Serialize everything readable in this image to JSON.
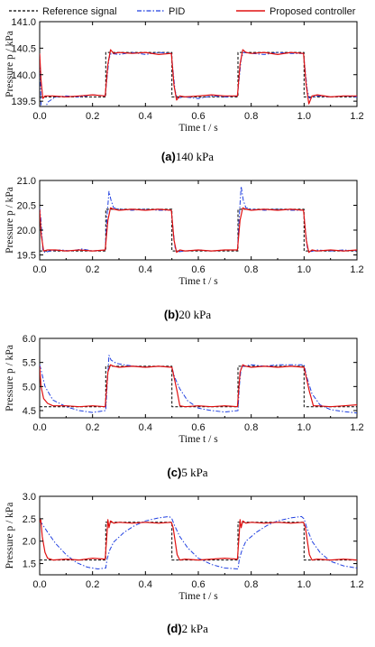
{
  "legend": [
    {
      "label": "Reference signal",
      "color": "#000000",
      "dash": "3,2"
    },
    {
      "label": "PID",
      "color": "#1f3fe0",
      "dash": "5,2,1.5,2"
    },
    {
      "label": "Proposed controller",
      "color": "#e01010",
      "dash": ""
    }
  ],
  "chart_data": [
    {
      "type": "line",
      "caption_letter": "(a)",
      "caption_text": "140 kPa",
      "xlabel": "Time t / s",
      "ylabel": "Pressure p / kPa",
      "xlim": [
        0,
        1.2
      ],
      "ylim": [
        139.4,
        141.0
      ],
      "xticks": [
        "0.0",
        "0.2",
        "0.4",
        "0.6",
        "0.8",
        "1.0",
        "1.2"
      ],
      "yticks": [
        "139.5",
        "140.0",
        "140.5",
        "141.0"
      ],
      "ytick_values": [
        139.5,
        140.0,
        140.5,
        141.0
      ],
      "series": [
        {
          "name": "Reference signal",
          "x": [
            0,
            0.25,
            0.25,
            0.5,
            0.5,
            0.75,
            0.75,
            1.0,
            1.0,
            1.2
          ],
          "y": [
            139.58,
            139.58,
            140.42,
            140.42,
            139.58,
            139.58,
            140.42,
            140.42,
            139.58,
            139.58
          ]
        },
        {
          "name": "PID",
          "x": [
            0,
            0.006,
            0.013,
            0.03,
            0.06,
            0.1,
            0.15,
            0.2,
            0.248,
            0.255,
            0.262,
            0.27,
            0.3,
            0.35,
            0.4,
            0.45,
            0.498,
            0.505,
            0.512,
            0.52,
            0.55,
            0.6,
            0.65,
            0.7,
            0.748,
            0.755,
            0.762,
            0.77,
            0.8,
            0.85,
            0.9,
            0.95,
            0.998,
            1.005,
            1.012,
            1.02,
            1.05,
            1.1,
            1.15,
            1.2
          ],
          "y": [
            140.4,
            139.3,
            139.24,
            139.48,
            139.58,
            139.6,
            139.58,
            139.62,
            139.6,
            139.95,
            140.3,
            140.4,
            140.38,
            140.42,
            140.38,
            140.42,
            140.4,
            140.05,
            139.7,
            139.56,
            139.58,
            139.55,
            139.6,
            139.58,
            139.6,
            139.95,
            140.3,
            140.42,
            140.4,
            140.38,
            140.42,
            140.4,
            140.4,
            140.05,
            139.7,
            139.56,
            139.6,
            139.58,
            139.6,
            139.58
          ]
        },
        {
          "name": "Proposed controller",
          "x": [
            0,
            0.005,
            0.012,
            0.02,
            0.05,
            0.1,
            0.15,
            0.2,
            0.248,
            0.258,
            0.268,
            0.28,
            0.3,
            0.35,
            0.4,
            0.45,
            0.498,
            0.508,
            0.518,
            0.53,
            0.55,
            0.6,
            0.65,
            0.7,
            0.748,
            0.758,
            0.768,
            0.78,
            0.8,
            0.85,
            0.9,
            0.95,
            0.998,
            1.008,
            1.018,
            1.03,
            1.05,
            1.1,
            1.15,
            1.2
          ],
          "y": [
            140.4,
            139.9,
            139.55,
            139.6,
            139.6,
            139.58,
            139.6,
            139.62,
            139.6,
            140.2,
            140.47,
            140.4,
            140.42,
            140.4,
            140.42,
            140.38,
            140.4,
            139.8,
            139.52,
            139.6,
            139.58,
            139.6,
            139.62,
            139.6,
            139.6,
            140.2,
            140.47,
            140.42,
            140.4,
            140.42,
            140.38,
            140.42,
            140.4,
            139.8,
            139.45,
            139.6,
            139.62,
            139.58,
            139.6,
            139.6
          ]
        }
      ]
    },
    {
      "type": "line",
      "caption_letter": "(b)",
      "caption_text": "20 kPa",
      "xlabel": "Time t / s",
      "ylabel": "Pressure p / kPa",
      "xlim": [
        0,
        1.2
      ],
      "ylim": [
        19.4,
        21.0
      ],
      "xticks": [
        "0.0",
        "0.2",
        "0.4",
        "0.6",
        "0.8",
        "1.0",
        "1.2"
      ],
      "yticks": [
        "19.5",
        "20.0",
        "20.5",
        "21.0"
      ],
      "ytick_values": [
        19.5,
        20.0,
        20.5,
        21.0
      ],
      "series": [
        {
          "name": "Reference signal",
          "x": [
            0,
            0.25,
            0.25,
            0.5,
            0.5,
            0.75,
            0.75,
            1.0,
            1.0,
            1.2
          ],
          "y": [
            19.58,
            19.58,
            20.42,
            20.42,
            19.58,
            19.58,
            20.42,
            20.42,
            19.58,
            19.58
          ]
        },
        {
          "name": "PID",
          "x": [
            0,
            0.005,
            0.012,
            0.02,
            0.04,
            0.08,
            0.12,
            0.16,
            0.2,
            0.248,
            0.255,
            0.262,
            0.27,
            0.28,
            0.3,
            0.35,
            0.4,
            0.45,
            0.498,
            0.505,
            0.512,
            0.52,
            0.55,
            0.6,
            0.65,
            0.7,
            0.748,
            0.755,
            0.762,
            0.77,
            0.78,
            0.8,
            0.85,
            0.9,
            0.95,
            0.998,
            1.005,
            1.012,
            1.02,
            1.05,
            1.1,
            1.15,
            1.2
          ],
          "y": [
            20.45,
            20.2,
            19.6,
            19.55,
            19.58,
            19.6,
            19.58,
            19.62,
            19.58,
            19.6,
            20.3,
            20.78,
            20.6,
            20.45,
            20.42,
            20.4,
            20.42,
            20.4,
            20.4,
            20.0,
            19.65,
            19.56,
            19.58,
            19.6,
            19.58,
            19.6,
            19.6,
            20.3,
            20.88,
            20.6,
            20.45,
            20.42,
            20.4,
            20.42,
            20.4,
            20.4,
            20.0,
            19.65,
            19.56,
            19.6,
            19.58,
            19.6,
            19.58
          ]
        },
        {
          "name": "Proposed controller",
          "x": [
            0,
            0.006,
            0.015,
            0.03,
            0.06,
            0.1,
            0.15,
            0.2,
            0.248,
            0.258,
            0.268,
            0.28,
            0.3,
            0.35,
            0.4,
            0.45,
            0.498,
            0.508,
            0.518,
            0.53,
            0.55,
            0.6,
            0.65,
            0.7,
            0.748,
            0.758,
            0.768,
            0.78,
            0.8,
            0.85,
            0.9,
            0.95,
            0.998,
            1.008,
            1.018,
            1.03,
            1.05,
            1.1,
            1.15,
            1.2
          ],
          "y": [
            20.42,
            19.9,
            19.58,
            19.6,
            19.6,
            19.58,
            19.6,
            19.58,
            19.6,
            20.2,
            20.45,
            20.42,
            20.4,
            20.42,
            20.4,
            20.42,
            20.4,
            19.8,
            19.55,
            19.6,
            19.58,
            19.6,
            19.58,
            19.6,
            19.6,
            20.2,
            20.45,
            20.42,
            20.4,
            20.42,
            20.4,
            20.42,
            20.4,
            19.8,
            19.55,
            19.6,
            19.58,
            19.6,
            19.58,
            19.6
          ]
        }
      ]
    },
    {
      "type": "line",
      "caption_letter": "(c)",
      "caption_text": "5 kPa",
      "xlabel": "Time t / s",
      "ylabel": "Pressure p / kPa",
      "xlim": [
        0,
        1.2
      ],
      "ylim": [
        4.35,
        6.0
      ],
      "xticks": [
        "0.0",
        "0.2",
        "0.4",
        "0.6",
        "0.8",
        "1.0",
        "1.2"
      ],
      "yticks": [
        "4.5",
        "5.0",
        "5.5",
        "6.0"
      ],
      "ytick_values": [
        4.5,
        5.0,
        5.5,
        6.0
      ],
      "series": [
        {
          "name": "Reference signal",
          "x": [
            0,
            0.25,
            0.25,
            0.5,
            0.5,
            0.75,
            0.75,
            1.0,
            1.0,
            1.2
          ],
          "y": [
            4.58,
            4.58,
            5.42,
            5.42,
            4.58,
            4.58,
            5.42,
            5.42,
            4.58,
            4.58
          ]
        },
        {
          "name": "PID",
          "x": [
            0,
            0.005,
            0.02,
            0.05,
            0.1,
            0.15,
            0.2,
            0.25,
            0.255,
            0.262,
            0.27,
            0.29,
            0.32,
            0.36,
            0.4,
            0.45,
            0.5,
            0.51,
            0.53,
            0.56,
            0.6,
            0.65,
            0.7,
            0.75,
            0.755,
            0.762,
            0.77,
            0.8,
            0.85,
            0.9,
            0.95,
            1.0,
            1.01,
            1.03,
            1.06,
            1.1,
            1.15,
            1.2
          ],
          "y": [
            5.45,
            5.35,
            5.0,
            4.72,
            4.58,
            4.5,
            4.46,
            4.5,
            5.0,
            5.65,
            5.55,
            5.48,
            5.45,
            5.42,
            5.4,
            5.42,
            5.4,
            5.2,
            4.95,
            4.7,
            4.55,
            4.5,
            4.47,
            4.5,
            5.0,
            5.4,
            5.42,
            5.45,
            5.42,
            5.45,
            5.45,
            5.45,
            5.2,
            4.85,
            4.62,
            4.52,
            4.48,
            4.45
          ]
        },
        {
          "name": "Proposed controller",
          "x": [
            0,
            0.005,
            0.015,
            0.03,
            0.05,
            0.1,
            0.15,
            0.2,
            0.248,
            0.258,
            0.268,
            0.28,
            0.3,
            0.35,
            0.4,
            0.45,
            0.5,
            0.52,
            0.53,
            0.55,
            0.6,
            0.65,
            0.7,
            0.748,
            0.758,
            0.768,
            0.78,
            0.8,
            0.85,
            0.9,
            0.95,
            1.0,
            1.02,
            1.035,
            1.05,
            1.1,
            1.15,
            1.2
          ],
          "y": [
            5.42,
            5.0,
            4.75,
            4.65,
            4.6,
            4.6,
            4.58,
            4.6,
            4.58,
            5.3,
            5.45,
            5.42,
            5.4,
            5.42,
            5.4,
            5.42,
            5.4,
            4.9,
            4.6,
            4.58,
            4.6,
            4.58,
            4.6,
            4.58,
            5.3,
            5.45,
            5.42,
            5.4,
            5.42,
            5.4,
            5.42,
            5.4,
            4.9,
            4.6,
            4.6,
            4.58,
            4.6,
            4.62
          ]
        }
      ]
    },
    {
      "type": "line",
      "caption_letter": "(d)",
      "caption_text": "2 kPa",
      "xlabel": "Time t / s",
      "ylabel": "Pressure p / kPa",
      "xlim": [
        0,
        1.2
      ],
      "ylim": [
        1.25,
        3.0
      ],
      "xticks": [
        "0.0",
        "0.2",
        "0.4",
        "0.6",
        "0.8",
        "1.0",
        "1.2"
      ],
      "yticks": [
        "1.5",
        "2.0",
        "2.5",
        "3.0"
      ],
      "ytick_values": [
        1.5,
        2.0,
        2.5,
        3.0
      ],
      "series": [
        {
          "name": "Reference signal",
          "x": [
            0,
            0.25,
            0.25,
            0.5,
            0.5,
            0.75,
            0.75,
            1.0,
            1.0,
            1.2
          ],
          "y": [
            1.58,
            1.58,
            2.42,
            2.42,
            1.58,
            1.58,
            2.42,
            2.42,
            1.58,
            1.58
          ]
        },
        {
          "name": "PID",
          "x": [
            0,
            0.005,
            0.03,
            0.06,
            0.1,
            0.14,
            0.18,
            0.22,
            0.25,
            0.255,
            0.265,
            0.28,
            0.32,
            0.36,
            0.4,
            0.45,
            0.49,
            0.5,
            0.51,
            0.53,
            0.56,
            0.6,
            0.65,
            0.7,
            0.75,
            0.755,
            0.765,
            0.78,
            0.82,
            0.86,
            0.9,
            0.95,
            0.99,
            1.0,
            1.01,
            1.03,
            1.06,
            1.1,
            1.15,
            1.2
          ],
          "y": [
            2.45,
            2.42,
            2.2,
            1.95,
            1.7,
            1.52,
            1.42,
            1.38,
            1.4,
            1.6,
            1.8,
            1.98,
            2.2,
            2.35,
            2.45,
            2.52,
            2.55,
            2.5,
            2.35,
            2.1,
            1.85,
            1.62,
            1.48,
            1.4,
            1.38,
            1.6,
            1.8,
            2.0,
            2.2,
            2.35,
            2.45,
            2.52,
            2.55,
            2.5,
            2.3,
            2.0,
            1.75,
            1.55,
            1.45,
            1.4
          ]
        },
        {
          "name": "Proposed controller",
          "x": [
            0,
            0.004,
            0.01,
            0.02,
            0.03,
            0.05,
            0.1,
            0.15,
            0.2,
            0.248,
            0.255,
            0.258,
            0.262,
            0.268,
            0.28,
            0.3,
            0.35,
            0.4,
            0.45,
            0.498,
            0.505,
            0.52,
            0.53,
            0.55,
            0.6,
            0.65,
            0.7,
            0.748,
            0.755,
            0.758,
            0.762,
            0.768,
            0.78,
            0.8,
            0.85,
            0.9,
            0.95,
            0.998,
            1.005,
            1.02,
            1.03,
            1.05,
            1.1,
            1.15,
            1.2
          ],
          "y": [
            2.42,
            2.48,
            2.1,
            1.75,
            1.62,
            1.58,
            1.6,
            1.58,
            1.62,
            1.6,
            2.2,
            2.48,
            2.3,
            2.45,
            2.4,
            2.42,
            2.4,
            2.42,
            2.4,
            2.42,
            2.3,
            1.7,
            1.58,
            1.6,
            1.58,
            1.6,
            1.62,
            1.6,
            2.2,
            2.48,
            2.3,
            2.45,
            2.4,
            2.42,
            2.4,
            2.42,
            2.4,
            2.42,
            2.3,
            1.7,
            1.58,
            1.6,
            1.58,
            1.6,
            1.58
          ]
        }
      ]
    }
  ]
}
